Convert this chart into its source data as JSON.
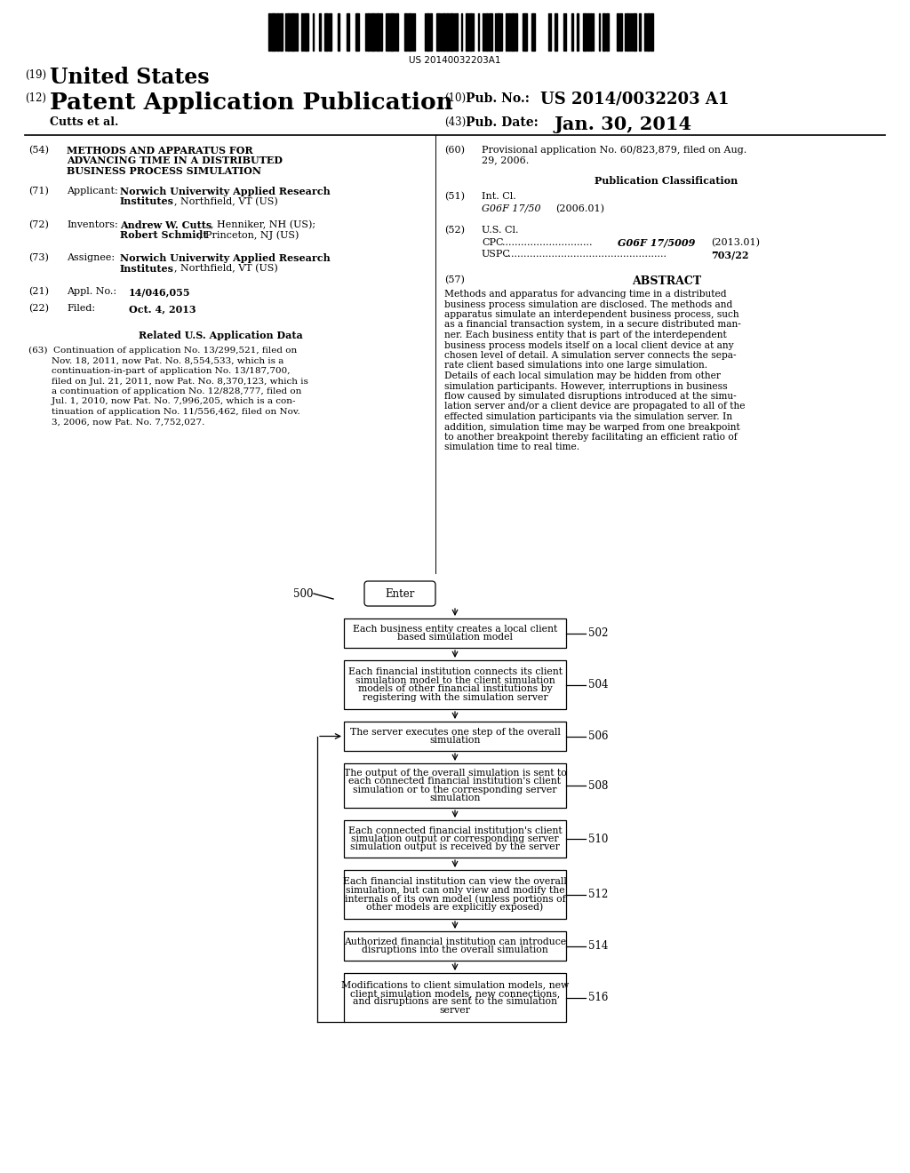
{
  "background_color": "#ffffff",
  "barcode_text": "US 20140032203A1",
  "flowchart": {
    "boxes": [
      {
        "id": 502,
        "text": "Each business entity creates a local client\nbased simulation model"
      },
      {
        "id": 504,
        "text": "Each financial institution connects its client\nsimulation model to the client simulation\nmodels of other financial institutions by\nregistering with the simulation server"
      },
      {
        "id": 506,
        "text": "The server executes one step of the overall\nsimulation"
      },
      {
        "id": 508,
        "text": "The output of the overall simulation is sent to\neach connected financial institution's client\nsimulation or to the corresponding server\nsimulation"
      },
      {
        "id": 510,
        "text": "Each connected financial institution's client\nsimulation output or corresponding server\nsimulation output is received by the server"
      },
      {
        "id": 512,
        "text": "Each financial institution can view the overall\nsimulation, but can only view and modify the\ninternals of its own model (unless portions of\nother models are explicitly exposed)"
      },
      {
        "id": 514,
        "text": "Authorized financial institution can introduce\ndisruptions into the overall simulation"
      },
      {
        "id": 516,
        "text": "Modifications to client simulation models, new\nclient simulation models, new connections,\nand disruptions are sent to the simulation\nserver"
      }
    ]
  }
}
